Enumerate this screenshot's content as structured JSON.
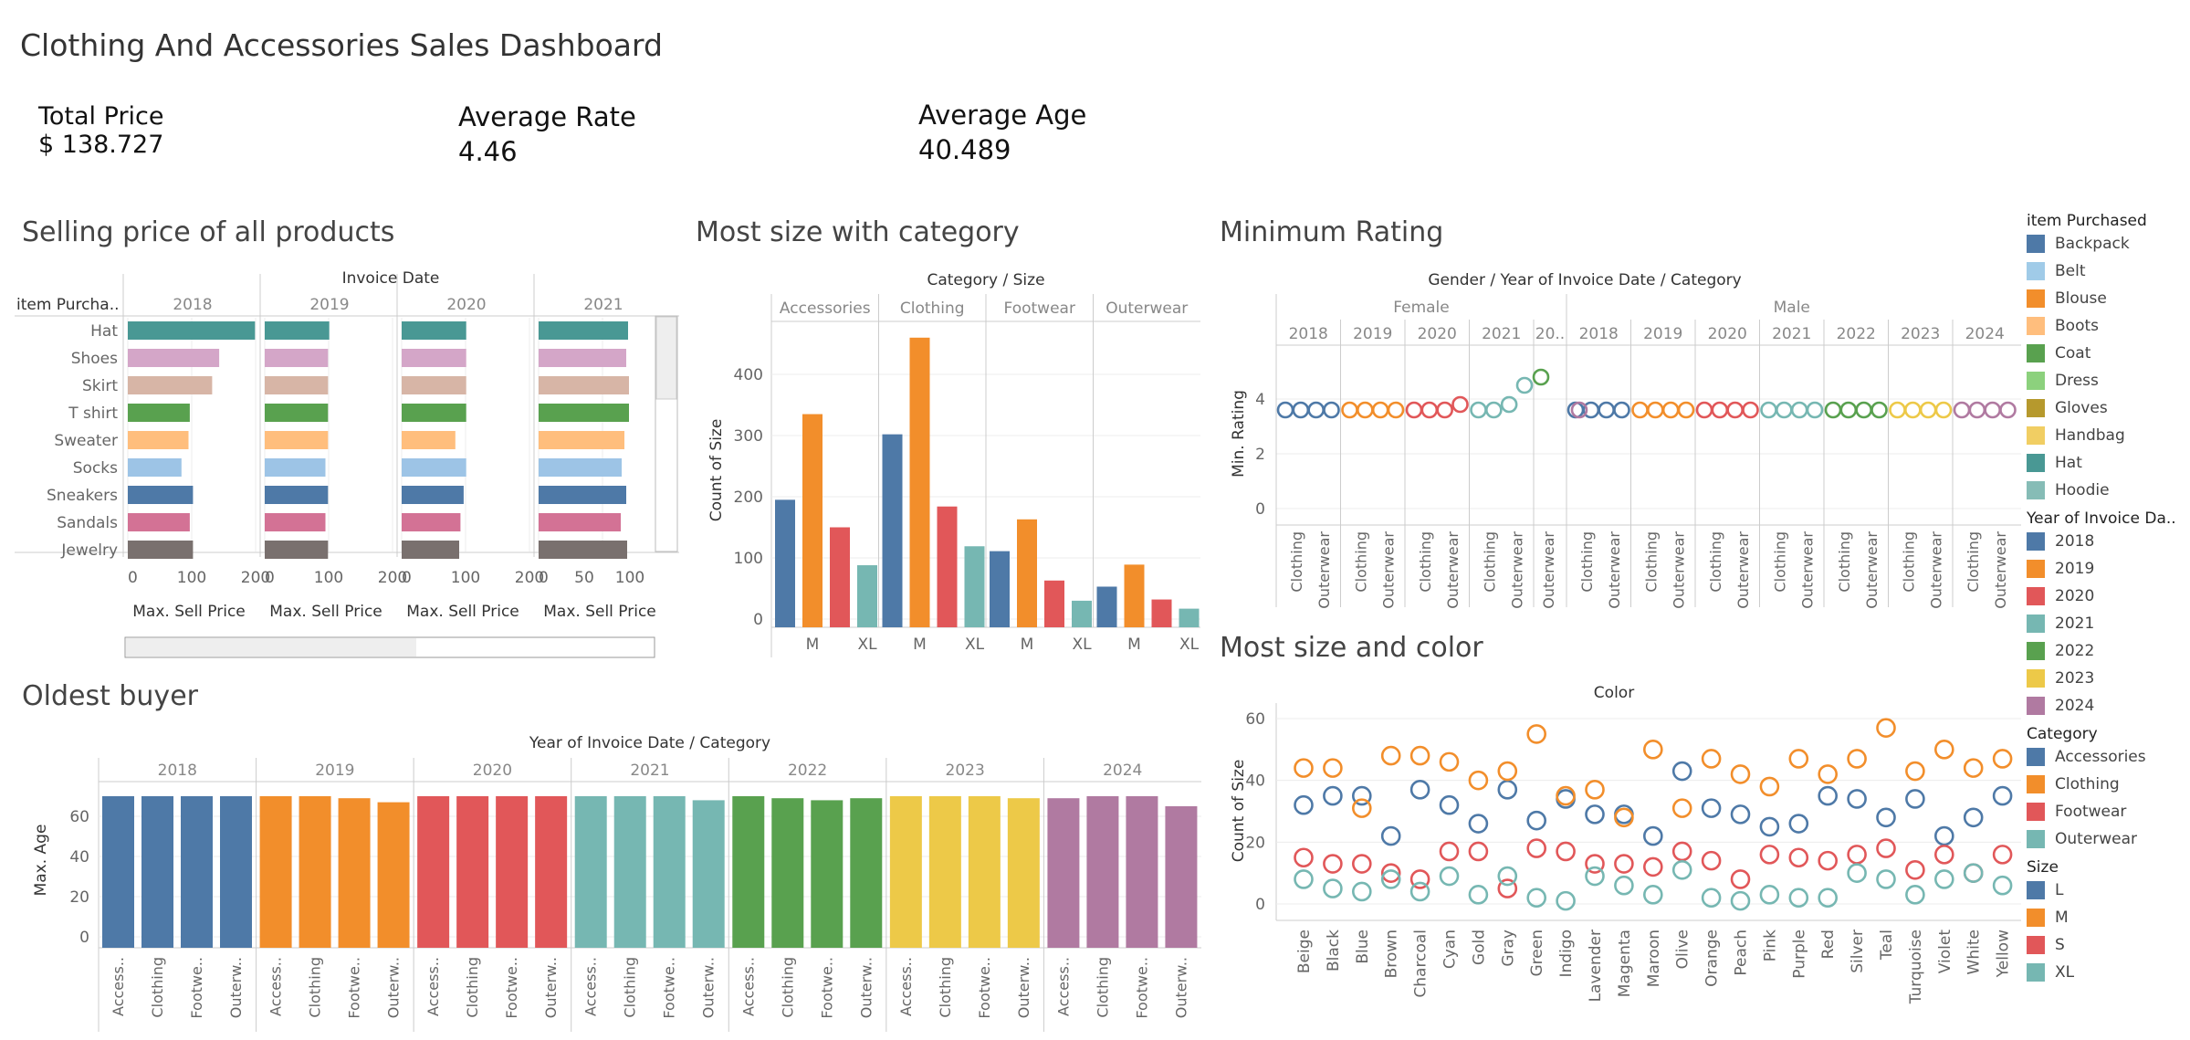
{
  "dashboard": {
    "title": "Clothing And Accessories Sales Dashboard"
  },
  "kpis": [
    {
      "label": "Total Price",
      "value": "$ 138.727"
    },
    {
      "label": "Average Rate",
      "value": "4.46"
    },
    {
      "label": "Average Age",
      "value": "40.489"
    }
  ],
  "panels": {
    "selling": "Selling price of all products",
    "size_category": "Most size with category",
    "min_rating": "Minimum Rating",
    "oldest": "Oldest buyer",
    "size_color": "Most size and color"
  },
  "colors": {
    "y2018": "#4e79a7",
    "y2019": "#f28e2b",
    "y2020": "#e15759",
    "y2021": "#76b7b2",
    "y2022": "#59a14f",
    "y2023": "#edc948",
    "y2024": "#b07aa1",
    "L": "#4e79a7",
    "M": "#f28e2b",
    "S": "#e15759",
    "XL": "#76b7b2"
  },
  "legends": [
    {
      "title": "item Purchased",
      "items": [
        {
          "label": "Backpack",
          "color": "#4e79a7"
        },
        {
          "label": "Belt",
          "color": "#a0cbe8"
        },
        {
          "label": "Blouse",
          "color": "#f28e2b"
        },
        {
          "label": "Boots",
          "color": "#ffbe7d"
        },
        {
          "label": "Coat",
          "color": "#59a14f"
        },
        {
          "label": "Dress",
          "color": "#8cd17d"
        },
        {
          "label": "Gloves",
          "color": "#b6992d"
        },
        {
          "label": "Handbag",
          "color": "#f1ce63"
        },
        {
          "label": "Hat",
          "color": "#499894"
        },
        {
          "label": "Hoodie",
          "color": "#86bcb6"
        }
      ]
    },
    {
      "title": "Year of Invoice Da..",
      "items": [
        {
          "label": "2018",
          "color": "#4e79a7"
        },
        {
          "label": "2019",
          "color": "#f28e2b"
        },
        {
          "label": "2020",
          "color": "#e15759"
        },
        {
          "label": "2021",
          "color": "#76b7b2"
        },
        {
          "label": "2022",
          "color": "#59a14f"
        },
        {
          "label": "2023",
          "color": "#edc948"
        },
        {
          "label": "2024",
          "color": "#b07aa1"
        }
      ]
    },
    {
      "title": "Category",
      "items": [
        {
          "label": "Accessories",
          "color": "#4e79a7"
        },
        {
          "label": "Clothing",
          "color": "#f28e2b"
        },
        {
          "label": "Footwear",
          "color": "#e15759"
        },
        {
          "label": "Outerwear",
          "color": "#76b7b2"
        }
      ]
    },
    {
      "title": "Size",
      "items": [
        {
          "label": "L",
          "color": "#4e79a7"
        },
        {
          "label": "M",
          "color": "#f28e2b"
        },
        {
          "label": "S",
          "color": "#e15759"
        },
        {
          "label": "XL",
          "color": "#76b7b2"
        }
      ]
    }
  ],
  "chart_data": [
    {
      "id": "selling",
      "type": "bar",
      "orientation": "horizontal",
      "title": "Selling price of all products",
      "header": "Invoice Date",
      "row_header": "item Purcha..",
      "xlabel": "Max. Sell Price",
      "panels": [
        "2018",
        "2019",
        "2020",
        "2021"
      ],
      "xlim": [
        0,
        200
      ],
      "xticks": [
        [
          "0",
          "100",
          "200"
        ],
        [
          "0",
          "100",
          "200"
        ],
        [
          "0",
          "100",
          "200"
        ],
        [
          "0",
          "50",
          "100"
        ]
      ],
      "categories": [
        "Hat",
        "Shoes",
        "Skirt",
        "T shirt",
        "Sweater",
        "Socks",
        "Sneakers",
        "Sandals",
        "Jewelry"
      ],
      "item_colors": {
        "Hat": "#499894",
        "Shoes": "#d4a6c8",
        "Skirt": "#d7b5a6",
        "T shirt": "#59a14f",
        "Sweater": "#ffbe7d",
        "Socks": "#9dc4e6",
        "Sneakers": "#4e79a7",
        "Sandals": "#d37295",
        "Jewelry": "#79706e"
      },
      "series": [
        {
          "name": "2018",
          "values": [
            199,
            143,
            132,
            97,
            95,
            84,
            102,
            97,
            102
          ]
        },
        {
          "name": "2019",
          "values": [
            101,
            99,
            99,
            99,
            99,
            95,
            99,
            95,
            99
          ]
        },
        {
          "name": "2020",
          "values": [
            101,
            101,
            101,
            101,
            84,
            101,
            97,
            92,
            90
          ]
        },
        {
          "name": "2021",
          "values": [
            98,
            96,
            99,
            99,
            94,
            91,
            96,
            90,
            97
          ]
        }
      ]
    },
    {
      "id": "size_category",
      "type": "bar",
      "title": "Most size with category",
      "header": "Category / Size",
      "ylabel": "Count of Size",
      "ylim": [
        0,
        480
      ],
      "yticks": [
        "0",
        "100",
        "200",
        "300",
        "400"
      ],
      "groups": [
        "Accessories",
        "Clothing",
        "Footwear",
        "Outerwear"
      ],
      "sizes": [
        "L",
        "M",
        "S",
        "XL"
      ],
      "tick_labels": [
        "M",
        "XL"
      ],
      "series": [
        {
          "name": "L",
          "values": [
            195,
            302,
            111,
            53
          ]
        },
        {
          "name": "M",
          "values": [
            335,
            460,
            163,
            89
          ]
        },
        {
          "name": "S",
          "values": [
            150,
            184,
            63,
            32
          ]
        },
        {
          "name": "XL",
          "values": [
            88,
            119,
            30,
            17
          ]
        }
      ]
    },
    {
      "id": "min_rating",
      "type": "scatter",
      "title": "Minimum Rating",
      "header": "Gender / Year of Invoice Date / Category",
      "ylabel": "Min. Rating",
      "ylim": [
        -0.5,
        6
      ],
      "yticks": [
        "0",
        "2",
        "4"
      ],
      "genders": [
        {
          "label": "Female",
          "years": [
            {
              "label": "2018",
              "points": [
                3.6,
                3.6,
                3.6,
                3.6
              ]
            },
            {
              "label": "2019",
              "points": [
                3.6,
                3.6,
                3.6,
                3.6
              ]
            },
            {
              "label": "2020",
              "points": [
                3.6,
                3.6,
                3.6,
                3.8
              ]
            },
            {
              "label": "2021",
              "points": [
                3.6,
                3.6,
                3.8,
                4.5
              ]
            },
            {
              "label": "20..",
              "points": [
                4.8
              ]
            }
          ]
        },
        {
          "label": "Male",
          "years": [
            {
              "label": "2018",
              "points": [
                3.6,
                3.6,
                3.6,
                3.6
              ]
            },
            {
              "label": "2019",
              "points": [
                3.6,
                3.6,
                3.6,
                3.6
              ]
            },
            {
              "label": "2020",
              "points": [
                3.6,
                3.6,
                3.6,
                3.6
              ]
            },
            {
              "label": "2021",
              "points": [
                3.6,
                3.6,
                3.6,
                3.6
              ]
            },
            {
              "label": "2022",
              "points": [
                3.6,
                3.6,
                3.6,
                3.6
              ]
            },
            {
              "label": "2023",
              "points": [
                3.6,
                3.6,
                3.6,
                3.6
              ]
            },
            {
              "label": "2024",
              "points": [
                3.6,
                3.6,
                3.6,
                3.6
              ]
            }
          ]
        }
      ],
      "female_last_prefix": [
        3.6
      ],
      "category_labels": [
        "Clothing",
        "Outerwear"
      ]
    },
    {
      "id": "oldest",
      "type": "bar",
      "title": "Oldest buyer",
      "header": "Year of Invoice Date / Category",
      "ylabel": "Max. Age",
      "ylim": [
        0,
        75
      ],
      "yticks": [
        "0",
        "20",
        "40",
        "60"
      ],
      "categories": [
        "Access..",
        "Clothing",
        "Footwe..",
        "Outerw.."
      ],
      "series": [
        {
          "name": "2018",
          "values": [
            70,
            70,
            70,
            70
          ]
        },
        {
          "name": "2019",
          "values": [
            70,
            70,
            69,
            67
          ]
        },
        {
          "name": "2020",
          "values": [
            70,
            70,
            70,
            70
          ]
        },
        {
          "name": "2021",
          "values": [
            70,
            70,
            70,
            68
          ]
        },
        {
          "name": "2022",
          "values": [
            70,
            69,
            68,
            69
          ]
        },
        {
          "name": "2023",
          "values": [
            70,
            70,
            70,
            69
          ]
        },
        {
          "name": "2024",
          "values": [
            69,
            70,
            70,
            65
          ]
        }
      ]
    },
    {
      "id": "size_color",
      "type": "scatter",
      "title": "Most size and color",
      "header": "Color",
      "ylabel": "Count of Size",
      "ylim": [
        -5,
        63
      ],
      "yticks": [
        "0",
        "20",
        "40",
        "60"
      ],
      "categories": [
        "Beige",
        "Black",
        "Blue",
        "Brown",
        "Charcoal",
        "Cyan",
        "Gold",
        "Gray",
        "Green",
        "Indigo",
        "Lavender",
        "Magenta",
        "Maroon",
        "Olive",
        "Orange",
        "Peach",
        "Pink",
        "Purple",
        "Red",
        "Silver",
        "Teal",
        "Turquoise",
        "Violet",
        "White",
        "Yellow"
      ],
      "series": [
        {
          "name": "L",
          "values": [
            32,
            35,
            35,
            22,
            37,
            32,
            26,
            37,
            27,
            34,
            29,
            29,
            22,
            43,
            31,
            29,
            25,
            26,
            35,
            34,
            28,
            34,
            22,
            28,
            35
          ]
        },
        {
          "name": "M",
          "values": [
            44,
            44,
            31,
            48,
            48,
            46,
            40,
            43,
            55,
            35,
            37,
            28,
            50,
            31,
            47,
            42,
            38,
            47,
            42,
            47,
            57,
            43,
            50,
            44,
            47
          ]
        },
        {
          "name": "S",
          "values": [
            15,
            13,
            13,
            10,
            8,
            17,
            17,
            5,
            18,
            17,
            13,
            13,
            12,
            17,
            14,
            8,
            16,
            15,
            14,
            16,
            18,
            11,
            16,
            10,
            16
          ]
        },
        {
          "name": "XL",
          "values": [
            8,
            5,
            4,
            8,
            4,
            9,
            3,
            9,
            2,
            1,
            9,
            6,
            3,
            11,
            2,
            1,
            3,
            2,
            2,
            10,
            8,
            3,
            8,
            10,
            6
          ]
        }
      ]
    }
  ]
}
